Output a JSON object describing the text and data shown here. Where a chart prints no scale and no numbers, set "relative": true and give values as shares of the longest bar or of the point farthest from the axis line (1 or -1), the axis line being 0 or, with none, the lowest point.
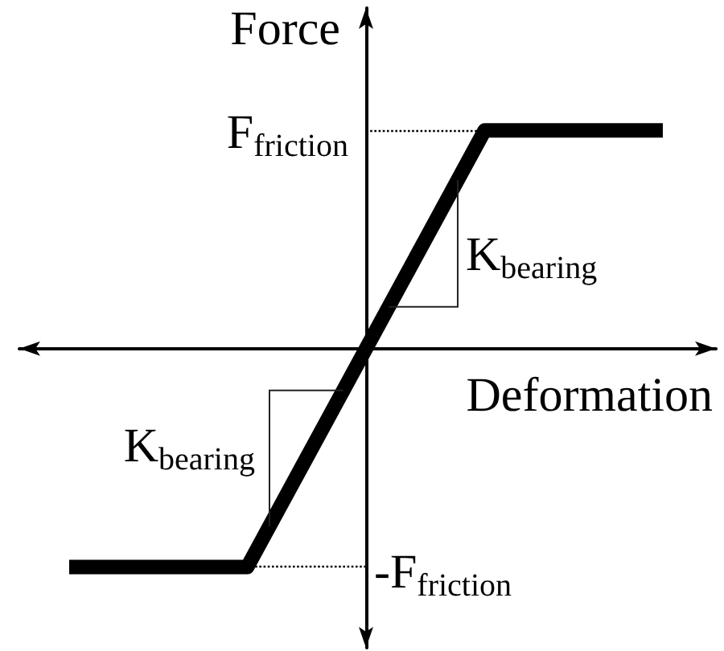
{
  "chart_data": {
    "type": "line",
    "xlabel": "Deformation",
    "ylabel": "Force",
    "relative": true,
    "categories": [
      null,
      null,
      null,
      null,
      null,
      null,
      null,
      null,
      null,
      null,
      null
    ],
    "values": [
      -1,
      -1,
      -1,
      -1,
      -0.5,
      0,
      0.5,
      1,
      1,
      1,
      1
    ],
    "color": "#000000",
    "marker": "none",
    "ref_lines": [
      {
        "axis": "y",
        "value": 1,
        "label": "F$_{friction}$",
        "line_style": "dotted",
        "color": "#000000"
      },
      {
        "axis": "y",
        "value": -1,
        "label": "-F$_{friction}$",
        "line_style": "dotted",
        "color": "#000000"
      }
    ],
    "annotations": [
      "K$_{bearing}$",
      "K$_{bearing}$"
    ]
  }
}
